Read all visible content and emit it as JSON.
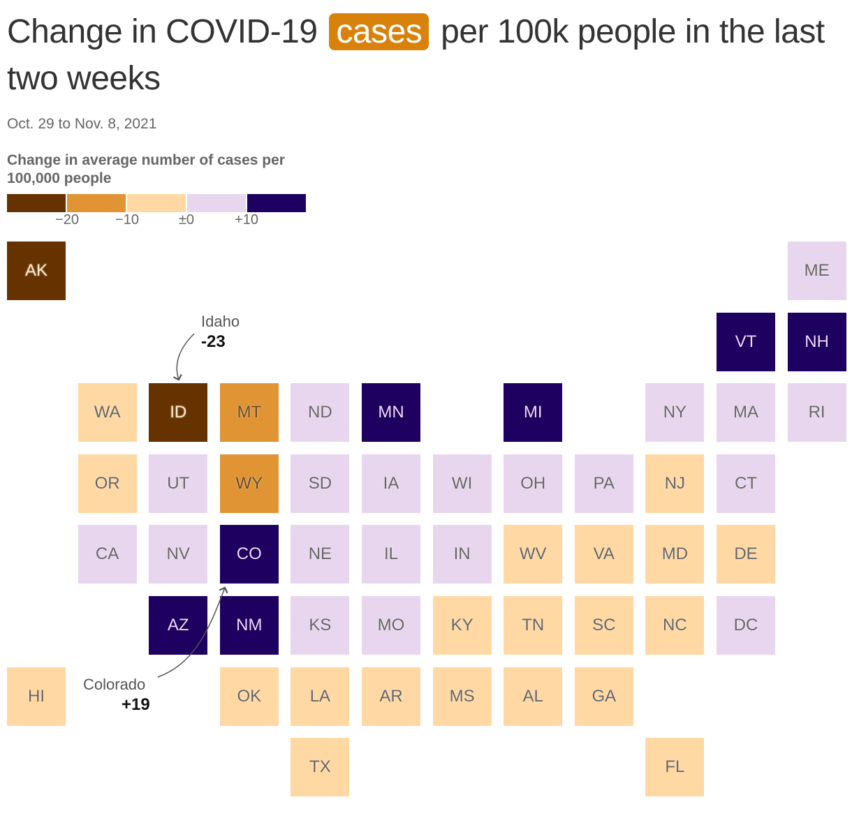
{
  "title": {
    "before": "Change in COVID-19",
    "highlight": "cases",
    "after": "per 100k people in the last two weeks"
  },
  "subtitle": "Oct. 29 to Nov. 8, 2021",
  "legend": {
    "title": "Change in average number of cases per 100,000 people",
    "colors": [
      "#663300",
      "#e09433",
      "#ffd8a3",
      "#e8d6ee",
      "#1e0060"
    ],
    "ticks": [
      "−20",
      "−10",
      "±0",
      "+10"
    ]
  },
  "annotations": {
    "idaho": {
      "name": "Idaho",
      "value": "-23"
    },
    "colorado": {
      "name": "Colorado",
      "value": "+19"
    }
  },
  "chart_data": {
    "type": "heatmap",
    "title": "Change in COVID-19 cases per 100k people in the last two weeks",
    "bins": [
      {
        "range": "below −20",
        "color": "#663300"
      },
      {
        "range": "−20 to −10",
        "color": "#e09433"
      },
      {
        "range": "−10 to ±0",
        "color": "#ffd8a3"
      },
      {
        "range": "±0 to +10",
        "color": "#e8d6ee"
      },
      {
        "range": "above +10",
        "color": "#1e0060"
      }
    ],
    "states": [
      {
        "abbr": "AK",
        "col": 0,
        "row": 0,
        "bin": 0
      },
      {
        "abbr": "ME",
        "col": 11,
        "row": 0,
        "bin": 3
      },
      {
        "abbr": "VT",
        "col": 10,
        "row": 1,
        "bin": 4
      },
      {
        "abbr": "NH",
        "col": 11,
        "row": 1,
        "bin": 4
      },
      {
        "abbr": "WA",
        "col": 1,
        "row": 2,
        "bin": 2
      },
      {
        "abbr": "ID",
        "col": 2,
        "row": 2,
        "bin": 0,
        "value": -23
      },
      {
        "abbr": "MT",
        "col": 3,
        "row": 2,
        "bin": 1
      },
      {
        "abbr": "ND",
        "col": 4,
        "row": 2,
        "bin": 3
      },
      {
        "abbr": "MN",
        "col": 5,
        "row": 2,
        "bin": 4
      },
      {
        "abbr": "MI",
        "col": 7,
        "row": 2,
        "bin": 4
      },
      {
        "abbr": "NY",
        "col": 9,
        "row": 2,
        "bin": 3
      },
      {
        "abbr": "MA",
        "col": 10,
        "row": 2,
        "bin": 3
      },
      {
        "abbr": "RI",
        "col": 11,
        "row": 2,
        "bin": 3
      },
      {
        "abbr": "OR",
        "col": 1,
        "row": 3,
        "bin": 2
      },
      {
        "abbr": "UT",
        "col": 2,
        "row": 3,
        "bin": 3
      },
      {
        "abbr": "WY",
        "col": 3,
        "row": 3,
        "bin": 1
      },
      {
        "abbr": "SD",
        "col": 4,
        "row": 3,
        "bin": 3
      },
      {
        "abbr": "IA",
        "col": 5,
        "row": 3,
        "bin": 3
      },
      {
        "abbr": "WI",
        "col": 6,
        "row": 3,
        "bin": 3
      },
      {
        "abbr": "OH",
        "col": 7,
        "row": 3,
        "bin": 3
      },
      {
        "abbr": "PA",
        "col": 8,
        "row": 3,
        "bin": 3
      },
      {
        "abbr": "NJ",
        "col": 9,
        "row": 3,
        "bin": 2
      },
      {
        "abbr": "CT",
        "col": 10,
        "row": 3,
        "bin": 3
      },
      {
        "abbr": "CA",
        "col": 1,
        "row": 4,
        "bin": 3
      },
      {
        "abbr": "NV",
        "col": 2,
        "row": 4,
        "bin": 3
      },
      {
        "abbr": "CO",
        "col": 3,
        "row": 4,
        "bin": 4,
        "value": 19
      },
      {
        "abbr": "NE",
        "col": 4,
        "row": 4,
        "bin": 3
      },
      {
        "abbr": "IL",
        "col": 5,
        "row": 4,
        "bin": 3
      },
      {
        "abbr": "IN",
        "col": 6,
        "row": 4,
        "bin": 3
      },
      {
        "abbr": "WV",
        "col": 7,
        "row": 4,
        "bin": 2
      },
      {
        "abbr": "VA",
        "col": 8,
        "row": 4,
        "bin": 2
      },
      {
        "abbr": "MD",
        "col": 9,
        "row": 4,
        "bin": 2
      },
      {
        "abbr": "DE",
        "col": 10,
        "row": 4,
        "bin": 2
      },
      {
        "abbr": "AZ",
        "col": 2,
        "row": 5,
        "bin": 4
      },
      {
        "abbr": "NM",
        "col": 3,
        "row": 5,
        "bin": 4
      },
      {
        "abbr": "KS",
        "col": 4,
        "row": 5,
        "bin": 3
      },
      {
        "abbr": "MO",
        "col": 5,
        "row": 5,
        "bin": 3
      },
      {
        "abbr": "KY",
        "col": 6,
        "row": 5,
        "bin": 2
      },
      {
        "abbr": "TN",
        "col": 7,
        "row": 5,
        "bin": 2
      },
      {
        "abbr": "SC",
        "col": 8,
        "row": 5,
        "bin": 2
      },
      {
        "abbr": "NC",
        "col": 9,
        "row": 5,
        "bin": 2
      },
      {
        "abbr": "DC",
        "col": 10,
        "row": 5,
        "bin": 3
      },
      {
        "abbr": "HI",
        "col": 0,
        "row": 6,
        "bin": 2
      },
      {
        "abbr": "OK",
        "col": 3,
        "row": 6,
        "bin": 2
      },
      {
        "abbr": "LA",
        "col": 4,
        "row": 6,
        "bin": 2
      },
      {
        "abbr": "AR",
        "col": 5,
        "row": 6,
        "bin": 2
      },
      {
        "abbr": "MS",
        "col": 6,
        "row": 6,
        "bin": 2
      },
      {
        "abbr": "AL",
        "col": 7,
        "row": 6,
        "bin": 2
      },
      {
        "abbr": "GA",
        "col": 8,
        "row": 6,
        "bin": 2
      },
      {
        "abbr": "TX",
        "col": 4,
        "row": 7,
        "bin": 2
      },
      {
        "abbr": "FL",
        "col": 9,
        "row": 7,
        "bin": 2
      }
    ]
  }
}
